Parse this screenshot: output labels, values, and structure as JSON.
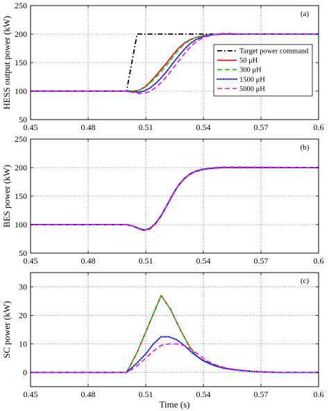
{
  "chart_data": [
    {
      "type": "line",
      "panel_label": "(a)",
      "ylabel": "HESS output power (kW)",
      "xlabel": "",
      "xlim": [
        0.45,
        0.6
      ],
      "ylim": [
        50,
        250
      ],
      "xticks": [
        "0.45",
        "0.48",
        "0.51",
        "0.54",
        "0.57",
        "0.6"
      ],
      "yticks": [
        "50",
        "100",
        "150",
        "200",
        "250"
      ],
      "grid": true,
      "legend_position": "right",
      "series": [
        {
          "name": "Target power command",
          "color": "#000000",
          "style": "dashdot",
          "x": [
            0.45,
            0.5,
            0.5055,
            0.6
          ],
          "y": [
            100,
            100,
            200,
            200
          ]
        },
        {
          "name": "50 μH",
          "color": "#e8141b",
          "style": "solid",
          "x": [
            0.45,
            0.5,
            0.503,
            0.506,
            0.509,
            0.512,
            0.515,
            0.518,
            0.521,
            0.524,
            0.527,
            0.53,
            0.533,
            0.536,
            0.54,
            0.545,
            0.55,
            0.56,
            0.6
          ],
          "y": [
            100,
            100,
            100,
            101,
            106,
            115,
            126,
            138,
            150,
            163,
            175,
            184,
            190,
            194,
            197,
            199,
            200,
            200,
            200
          ]
        },
        {
          "name": "300 μH",
          "color": "#26c826",
          "style": "dashed",
          "x": [
            0.45,
            0.5,
            0.503,
            0.506,
            0.509,
            0.512,
            0.515,
            0.518,
            0.521,
            0.524,
            0.527,
            0.53,
            0.533,
            0.536,
            0.54,
            0.545,
            0.55,
            0.56,
            0.6
          ],
          "y": [
            100,
            100,
            100,
            101,
            105,
            113,
            123,
            134,
            146,
            159,
            172,
            182,
            189,
            194,
            197,
            199,
            200,
            200,
            200
          ]
        },
        {
          "name": "1500 μH",
          "color": "#1f1fd6",
          "style": "dotted",
          "x": [
            0.45,
            0.5,
            0.503,
            0.506,
            0.509,
            0.512,
            0.515,
            0.518,
            0.521,
            0.524,
            0.527,
            0.53,
            0.533,
            0.536,
            0.54,
            0.545,
            0.55,
            0.56,
            0.6
          ],
          "y": [
            100,
            100,
            99,
            98,
            100,
            105,
            113,
            123,
            135,
            148,
            161,
            173,
            183,
            190,
            196,
            199,
            200,
            200,
            200
          ]
        },
        {
          "name": "5000 μH",
          "color": "#e61ee6",
          "style": "dashed",
          "x": [
            0.45,
            0.5,
            0.503,
            0.506,
            0.509,
            0.512,
            0.515,
            0.518,
            0.521,
            0.524,
            0.527,
            0.53,
            0.533,
            0.536,
            0.54,
            0.545,
            0.55,
            0.555,
            0.56,
            0.6
          ],
          "y": [
            100,
            100,
            98,
            96,
            96,
            99,
            106,
            115,
            126,
            139,
            152,
            165,
            177,
            186,
            194,
            199,
            201,
            201,
            200,
            200
          ]
        }
      ]
    },
    {
      "type": "line",
      "panel_label": "(b)",
      "ylabel": "BES power (kW)",
      "xlabel": "",
      "xlim": [
        0.45,
        0.6
      ],
      "ylim": [
        50,
        250
      ],
      "xticks": [
        "0.45",
        "0.48",
        "0.51",
        "0.54",
        "0.57",
        "0.6"
      ],
      "yticks": [
        "50",
        "100",
        "150",
        "200",
        "250"
      ],
      "grid": true,
      "series": [
        {
          "name": "50 μH",
          "color": "#e8141b",
          "style": "solid",
          "x": [
            0.45,
            0.5,
            0.503,
            0.506,
            0.509,
            0.512,
            0.515,
            0.518,
            0.521,
            0.524,
            0.527,
            0.53,
            0.533,
            0.536,
            0.54,
            0.545,
            0.55,
            0.56,
            0.6
          ],
          "y": [
            100,
            100,
            98,
            93,
            90,
            92,
            101,
            115,
            133,
            152,
            168,
            180,
            188,
            193,
            197,
            199,
            200,
            200,
            200
          ]
        },
        {
          "name": "300 μH",
          "color": "#26c826",
          "style": "dashed",
          "x": [
            0.45,
            0.5,
            0.503,
            0.506,
            0.509,
            0.512,
            0.515,
            0.518,
            0.521,
            0.524,
            0.527,
            0.53,
            0.533,
            0.536,
            0.54,
            0.545,
            0.55,
            0.56,
            0.6
          ],
          "y": [
            100,
            100,
            98,
            93,
            90,
            92,
            101,
            115,
            133,
            152,
            168,
            180,
            188,
            193,
            197,
            199,
            200,
            200,
            200
          ]
        },
        {
          "name": "1500 μH",
          "color": "#1f1fd6",
          "style": "dotted",
          "x": [
            0.45,
            0.5,
            0.503,
            0.506,
            0.509,
            0.512,
            0.515,
            0.518,
            0.521,
            0.524,
            0.527,
            0.53,
            0.533,
            0.536,
            0.54,
            0.545,
            0.55,
            0.56,
            0.6
          ],
          "y": [
            100,
            100,
            98,
            94,
            91,
            93,
            102,
            116,
            134,
            153,
            169,
            181,
            189,
            194,
            197,
            199,
            200,
            200,
            200
          ]
        },
        {
          "name": "5000 μH",
          "color": "#e61ee6",
          "style": "dashed",
          "x": [
            0.45,
            0.5,
            0.503,
            0.506,
            0.509,
            0.512,
            0.515,
            0.518,
            0.521,
            0.524,
            0.527,
            0.53,
            0.533,
            0.536,
            0.54,
            0.545,
            0.55,
            0.56,
            0.6
          ],
          "y": [
            100,
            100,
            98,
            94,
            91,
            93,
            101,
            115,
            133,
            152,
            169,
            181,
            189,
            194,
            198,
            200,
            201,
            201,
            200
          ]
        }
      ]
    },
    {
      "type": "line",
      "panel_label": "(c)",
      "ylabel": "SC power (kW)",
      "xlabel": "Time (s)",
      "xlim": [
        0.45,
        0.6
      ],
      "ylim": [
        -5,
        35
      ],
      "xticks": [
        "0.45",
        "0.48",
        "0.51",
        "0.54",
        "0.57",
        "0.6"
      ],
      "yticks": [
        "0",
        "10",
        "20",
        "30"
      ],
      "grid": true,
      "series": [
        {
          "name": "50 μH",
          "color": "#e8141b",
          "style": "solid",
          "x": [
            0.45,
            0.5,
            0.5055,
            0.518,
            0.523,
            0.528,
            0.532,
            0.536,
            0.54,
            0.545,
            0.55,
            0.555,
            0.56,
            0.565,
            0.57,
            0.575,
            0.58,
            0.6
          ],
          "y": [
            0,
            0,
            7,
            27,
            22,
            15,
            10,
            6,
            4,
            2.5,
            1.5,
            1,
            0.6,
            0.3,
            0.15,
            0.05,
            0,
            0
          ]
        },
        {
          "name": "300 μH",
          "color": "#26c826",
          "style": "dashed",
          "x": [
            0.45,
            0.5,
            0.5055,
            0.518,
            0.523,
            0.528,
            0.532,
            0.536,
            0.54,
            0.545,
            0.55,
            0.555,
            0.56,
            0.565,
            0.57,
            0.575,
            0.58,
            0.6
          ],
          "y": [
            0,
            0,
            7,
            27,
            22,
            15,
            10,
            6,
            4,
            2.5,
            1.5,
            1,
            0.6,
            0.3,
            0.15,
            0.05,
            0,
            0
          ]
        },
        {
          "name": "1500 μH",
          "color": "#1f1fd6",
          "style": "dotted",
          "x": [
            0.45,
            0.5,
            0.505,
            0.51,
            0.514,
            0.518,
            0.522,
            0.526,
            0.53,
            0.534,
            0.538,
            0.542,
            0.547,
            0.552,
            0.558,
            0.565,
            0.572,
            0.58,
            0.6
          ],
          "y": [
            0,
            0,
            3,
            6.5,
            10,
            12.5,
            12.5,
            11.5,
            9.5,
            7,
            5,
            3.5,
            2.2,
            1.4,
            0.8,
            0.4,
            0.15,
            0,
            0
          ]
        },
        {
          "name": "5000 μH",
          "color": "#e61ee6",
          "style": "dashed",
          "x": [
            0.45,
            0.5,
            0.505,
            0.51,
            0.514,
            0.518,
            0.522,
            0.526,
            0.53,
            0.534,
            0.538,
            0.542,
            0.547,
            0.552,
            0.558,
            0.565,
            0.572,
            0.58,
            0.6
          ],
          "y": [
            0,
            0,
            2,
            5,
            7.5,
            9.5,
            10,
            10,
            9.5,
            8,
            6,
            4,
            2.5,
            1.5,
            0.9,
            0.4,
            0.15,
            0,
            0
          ]
        }
      ]
    }
  ]
}
